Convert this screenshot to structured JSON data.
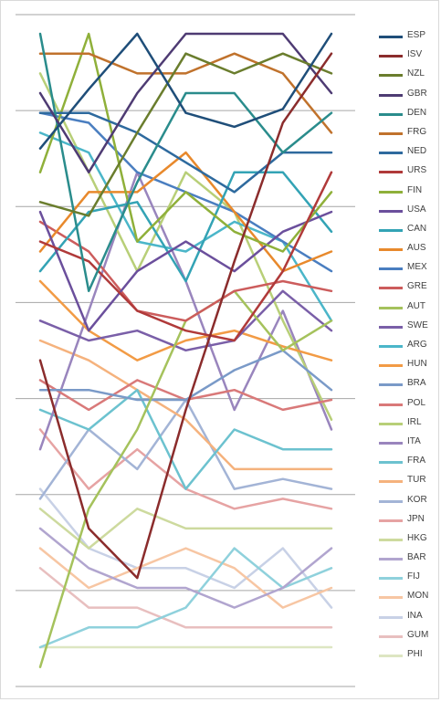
{
  "chart_data": {
    "type": "line",
    "title": "",
    "xlabel": "",
    "ylabel": "",
    "x": [
      1,
      2,
      3,
      4,
      5,
      6,
      7
    ],
    "gridlines_y": 8,
    "legend_position": "right",
    "series": [
      {
        "name": "ESP",
        "color": "#1f4e79",
        "values": [
          6.8,
          3.8,
          1.0,
          5.0,
          5.7,
          4.8,
          1.0
        ]
      },
      {
        "name": "ISV",
        "color": "#8b2c2c",
        "values": [
          17.5,
          26.0,
          28.5,
          20.0,
          12.5,
          5.5,
          2.0
        ]
      },
      {
        "name": "NZL",
        "color": "#6a7d2d",
        "values": [
          9.5,
          10.2,
          6.0,
          2.0,
          3.0,
          2.0,
          3.0
        ]
      },
      {
        "name": "GBR",
        "color": "#4e3b73",
        "values": [
          4.0,
          8.0,
          4.0,
          1.0,
          1.0,
          1.0,
          4.0
        ]
      },
      {
        "name": "DEN",
        "color": "#2a8c8c",
        "values": [
          1.0,
          14.0,
          8.5,
          4.0,
          4.0,
          7.0,
          5.0
        ]
      },
      {
        "name": "FRG",
        "color": "#c0722c",
        "values": [
          2.0,
          2.0,
          3.0,
          3.0,
          2.0,
          3.0,
          6.0
        ]
      },
      {
        "name": "NED",
        "color": "#2e6a9e",
        "values": [
          5.0,
          5.0,
          6.0,
          7.5,
          9.0,
          7.0,
          7.0
        ]
      },
      {
        "name": "URS",
        "color": "#b03a3a",
        "values": [
          11.5,
          12.5,
          15.0,
          16.0,
          16.5,
          13.0,
          8.0
        ]
      },
      {
        "name": "FIN",
        "color": "#8fb03a",
        "values": [
          8.0,
          1.0,
          11.5,
          9.0,
          11.0,
          12.0,
          9.0
        ]
      },
      {
        "name": "USA",
        "color": "#6b4f9c",
        "values": [
          10.0,
          16.0,
          13.0,
          11.5,
          13.0,
          11.0,
          10.0
        ]
      },
      {
        "name": "CAN",
        "color": "#33a3b5",
        "values": [
          13.0,
          10.0,
          9.5,
          13.5,
          8.0,
          8.0,
          11.0
        ]
      },
      {
        "name": "AUS",
        "color": "#e8892c",
        "values": [
          12.0,
          9.0,
          9.0,
          7.0,
          10.0,
          13.0,
          12.0
        ]
      },
      {
        "name": "MEX",
        "color": "#4a7ec0",
        "values": [
          5.0,
          5.5,
          8.0,
          9.0,
          10.0,
          11.5,
          13.0
        ]
      },
      {
        "name": "GRE",
        "color": "#cc5c5c",
        "values": [
          10.5,
          12.0,
          15.0,
          15.5,
          14.0,
          13.5,
          14.0
        ]
      },
      {
        "name": "AUT",
        "color": "#a5c25c",
        "values": [
          33.0,
          25.0,
          21.0,
          15.5,
          14.0,
          17.0,
          15.5
        ]
      },
      {
        "name": "SWE",
        "color": "#7a5fa8",
        "values": [
          15.5,
          16.5,
          16.0,
          17.0,
          16.5,
          14.0,
          16.0
        ]
      },
      {
        "name": "ARG",
        "color": "#4bb6c9",
        "values": [
          6.0,
          7.0,
          11.5,
          12.0,
          10.5,
          11.5,
          15.5
        ]
      },
      {
        "name": "HUN",
        "color": "#f29b45",
        "values": [
          13.5,
          16.0,
          17.5,
          16.5,
          16.0,
          16.8,
          17.5
        ]
      },
      {
        "name": "BRA",
        "color": "#7a9ac8",
        "values": [
          19.0,
          19.0,
          19.5,
          19.5,
          18.0,
          17.0,
          19.0
        ]
      },
      {
        "name": "POL",
        "color": "#d97979",
        "values": [
          18.5,
          20.0,
          18.5,
          19.5,
          19.0,
          20.0,
          19.5
        ]
      },
      {
        "name": "IRL",
        "color": "#b8cf78",
        "values": [
          3.0,
          8.0,
          13.0,
          8.0,
          10.0,
          15.5,
          20.5
        ]
      },
      {
        "name": "ITA",
        "color": "#9985bd",
        "values": [
          22.0,
          15.0,
          8.0,
          13.5,
          20.0,
          15.0,
          21.0
        ]
      },
      {
        "name": "FRA",
        "color": "#6cc2cf",
        "values": [
          20.0,
          21.0,
          19.0,
          24.0,
          21.0,
          22.0,
          22.0
        ]
      },
      {
        "name": "TUR",
        "color": "#f5b27d",
        "values": [
          16.5,
          17.5,
          19.0,
          20.5,
          23.0,
          23.0,
          23.0
        ]
      },
      {
        "name": "KOR",
        "color": "#a3b4d6",
        "values": [
          24.5,
          21.0,
          23.0,
          19.5,
          24.0,
          23.5,
          24.0
        ]
      },
      {
        "name": "JPN",
        "color": "#e6a3a3",
        "values": [
          21.0,
          24.0,
          22.0,
          24.0,
          25.0,
          24.5,
          25.0
        ]
      },
      {
        "name": "HKG",
        "color": "#cdda9e",
        "values": [
          25.0,
          27.0,
          25.0,
          26.0,
          26.0,
          26.0,
          26.0
        ]
      },
      {
        "name": "BAR",
        "color": "#b1a5cf",
        "values": [
          26.0,
          28.0,
          29.0,
          29.0,
          30.0,
          29.0,
          27.0
        ]
      },
      {
        "name": "FIJ",
        "color": "#8fd1dc",
        "values": [
          32.0,
          31.0,
          31.0,
          30.0,
          27.0,
          29.0,
          28.0
        ]
      },
      {
        "name": "MON",
        "color": "#f7c6a3",
        "values": [
          27.0,
          29.0,
          28.0,
          27.0,
          28.0,
          30.0,
          29.0
        ]
      },
      {
        "name": "INA",
        "color": "#c8d1e6",
        "values": [
          24.0,
          27.0,
          28.0,
          28.0,
          29.0,
          27.0,
          30.0
        ]
      },
      {
        "name": "GUM",
        "color": "#e8bfbf",
        "values": [
          28.0,
          30.0,
          30.0,
          31.0,
          31.0,
          31.0,
          31.0
        ]
      },
      {
        "name": "PHI",
        "color": "#dde6c2",
        "values": [
          32.0,
          32.0,
          32.0,
          32.0,
          32.0,
          32.0,
          32.0
        ]
      }
    ]
  }
}
